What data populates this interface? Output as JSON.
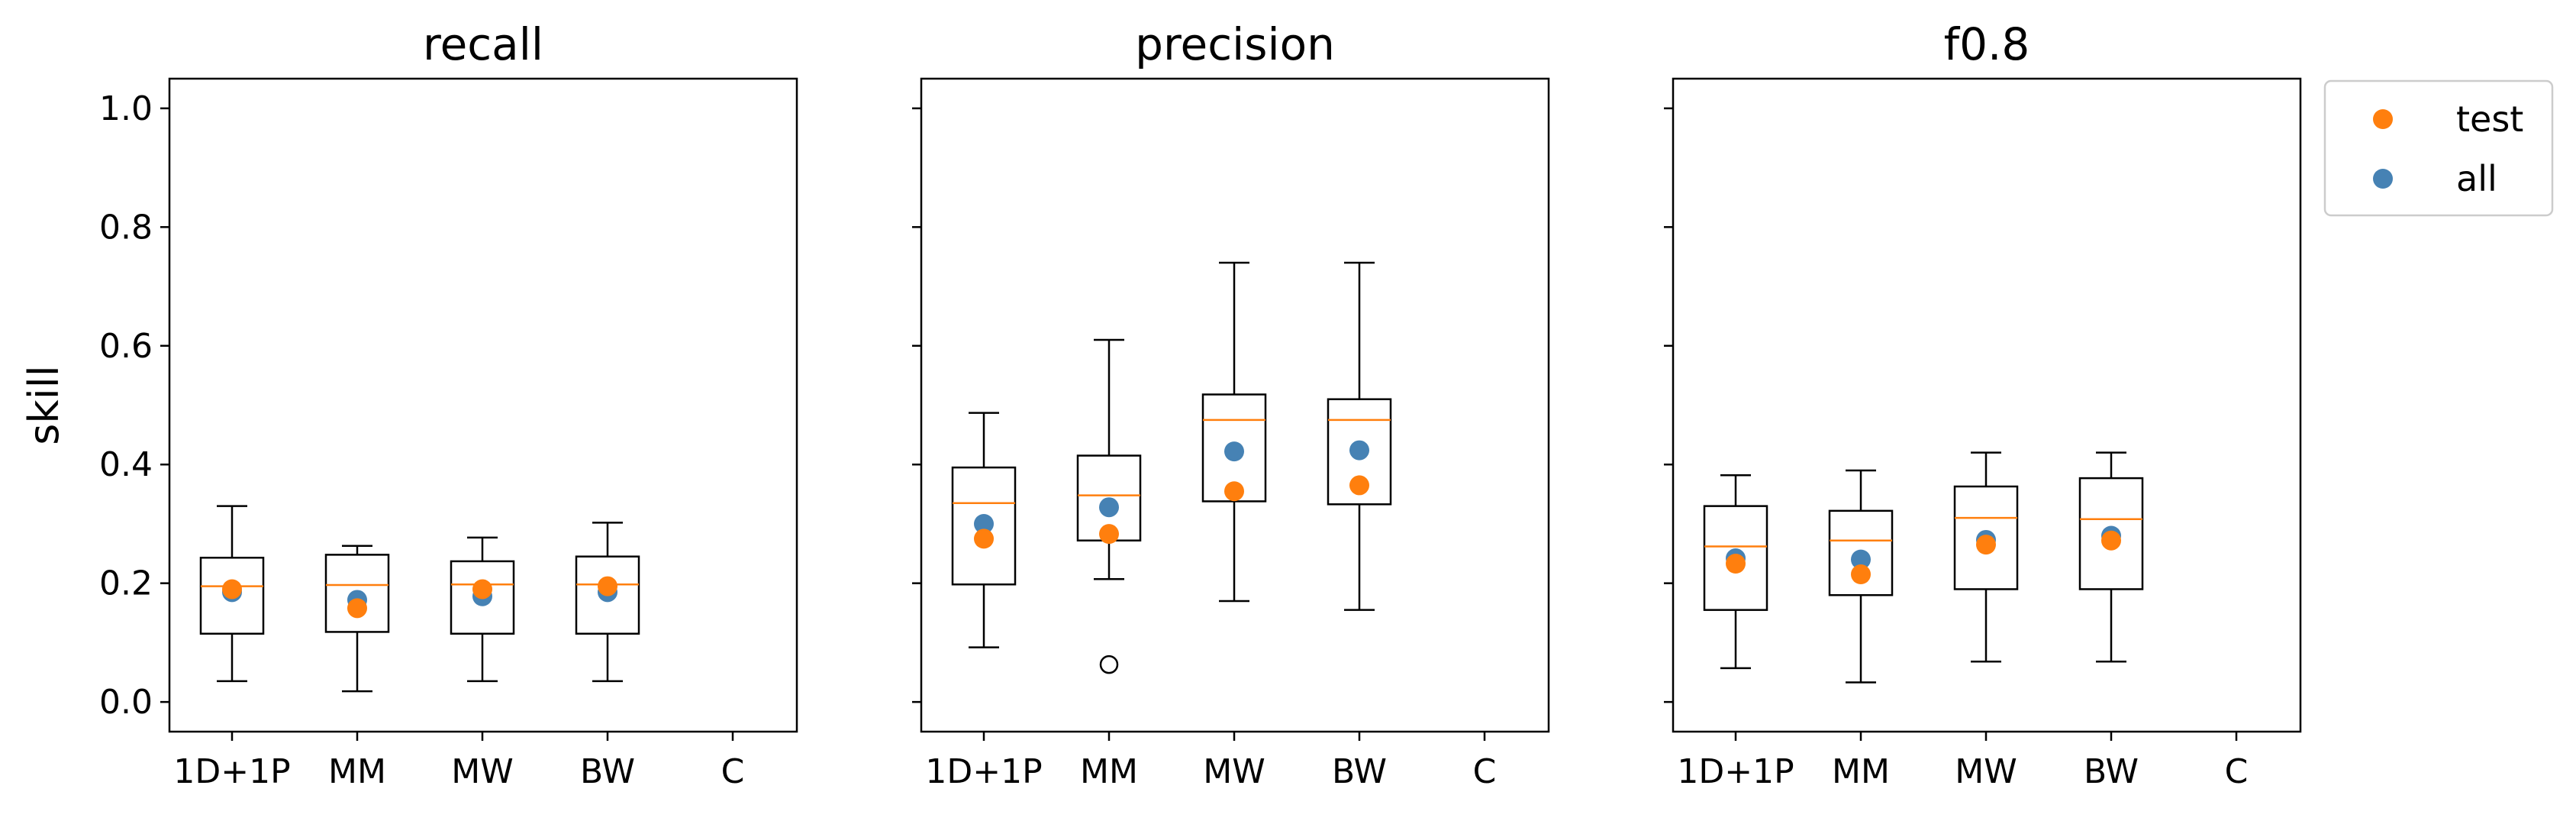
{
  "chart_data": {
    "type": "box",
    "ylabel": "skill",
    "ylim": [
      -0.05,
      1.05
    ],
    "yticks": [
      "0.0",
      "0.2",
      "0.4",
      "0.6",
      "0.8",
      "1.0"
    ],
    "categories": [
      "1D+1P",
      "MM",
      "MW",
      "BW",
      "C"
    ],
    "legend": {
      "placement": "outside-top-right",
      "entries": [
        {
          "label": "test",
          "color": "#ff7f0e"
        },
        {
          "label": "all",
          "color": "#4682b4"
        }
      ]
    },
    "colors": {
      "median": "#ff7f0e",
      "box": "#000000",
      "test": "#ff7f0e",
      "all": "#4682b4"
    },
    "panels": [
      {
        "title": "recall",
        "boxes": [
          {
            "category": "1D+1P",
            "whislo": 0.035,
            "q1": 0.115,
            "med": 0.195,
            "q3": 0.243,
            "whishi": 0.33,
            "fliers": []
          },
          {
            "category": "MM",
            "whislo": 0.018,
            "q1": 0.118,
            "med": 0.197,
            "q3": 0.248,
            "whishi": 0.263,
            "fliers": []
          },
          {
            "category": "MW",
            "whislo": 0.035,
            "q1": 0.115,
            "med": 0.198,
            "q3": 0.237,
            "whishi": 0.277,
            "fliers": []
          },
          {
            "category": "BW",
            "whislo": 0.035,
            "q1": 0.115,
            "med": 0.198,
            "q3": 0.245,
            "whishi": 0.302,
            "fliers": []
          }
        ],
        "test": [
          0.19,
          0.158,
          0.19,
          0.195
        ],
        "all": [
          0.185,
          0.172,
          0.178,
          0.185
        ]
      },
      {
        "title": "precision",
        "boxes": [
          {
            "category": "1D+1P",
            "whislo": 0.092,
            "q1": 0.198,
            "med": 0.335,
            "q3": 0.395,
            "whishi": 0.487,
            "fliers": []
          },
          {
            "category": "MM",
            "whislo": 0.207,
            "q1": 0.272,
            "med": 0.348,
            "q3": 0.415,
            "whishi": 0.61,
            "fliers": [
              0.063
            ]
          },
          {
            "category": "MW",
            "whislo": 0.17,
            "q1": 0.338,
            "med": 0.475,
            "q3": 0.518,
            "whishi": 0.74,
            "fliers": []
          },
          {
            "category": "BW",
            "whislo": 0.155,
            "q1": 0.333,
            "med": 0.475,
            "q3": 0.51,
            "whishi": 0.74,
            "fliers": []
          }
        ],
        "test": [
          0.275,
          0.283,
          0.355,
          0.365
        ],
        "all": [
          0.3,
          0.328,
          0.422,
          0.424
        ]
      },
      {
        "title": "f0.8",
        "boxes": [
          {
            "category": "1D+1P",
            "whislo": 0.057,
            "q1": 0.155,
            "med": 0.262,
            "q3": 0.33,
            "whishi": 0.382,
            "fliers": []
          },
          {
            "category": "MM",
            "whislo": 0.033,
            "q1": 0.18,
            "med": 0.272,
            "q3": 0.322,
            "whishi": 0.39,
            "fliers": []
          },
          {
            "category": "MW",
            "whislo": 0.068,
            "q1": 0.19,
            "med": 0.31,
            "q3": 0.363,
            "whishi": 0.42,
            "fliers": []
          },
          {
            "category": "BW",
            "whislo": 0.068,
            "q1": 0.19,
            "med": 0.308,
            "q3": 0.377,
            "whishi": 0.42,
            "fliers": []
          }
        ],
        "test": [
          0.233,
          0.215,
          0.265,
          0.272
        ],
        "all": [
          0.242,
          0.24,
          0.273,
          0.28
        ]
      }
    ]
  }
}
